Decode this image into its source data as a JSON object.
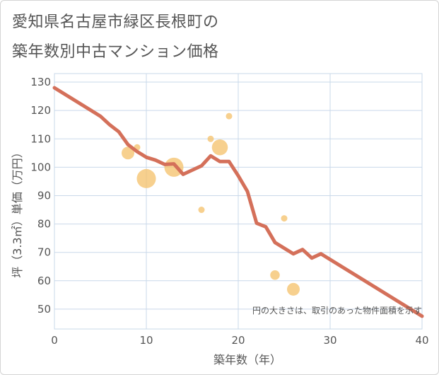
{
  "page": {
    "title_line1": "愛知県名古屋市緑区長根町の",
    "title_line2": "築年数別中古マンション価格"
  },
  "chart_data": {
    "type": "scatter",
    "title": "愛知県名古屋市緑区長根町の築年数別中古マンション価格",
    "xlabel": "築年数（年）",
    "ylabel": "坪（3.3㎡）単価（万円）",
    "xlim": [
      0,
      40
    ],
    "ylim": [
      43,
      133
    ],
    "xticks": [
      0,
      10,
      20,
      30,
      40
    ],
    "yticks": [
      50,
      60,
      70,
      80,
      90,
      100,
      110,
      120,
      130
    ],
    "grid": true,
    "note": "円の大きさは、取引のあった物件面積を示す",
    "colors": {
      "bubble": "#f5c36e",
      "line": "#d4705a",
      "grid": "#c9d8ea",
      "axis_text": "#555555"
    },
    "points": [
      {
        "x": 8,
        "y": 105,
        "size": 2
      },
      {
        "x": 9,
        "y": 107,
        "size": 1
      },
      {
        "x": 10,
        "y": 96,
        "size": 3
      },
      {
        "x": 13,
        "y": 100,
        "size": 3
      },
      {
        "x": 16,
        "y": 85,
        "size": 1
      },
      {
        "x": 17,
        "y": 110,
        "size": 1
      },
      {
        "x": 18,
        "y": 107,
        "size": 2.5
      },
      {
        "x": 19,
        "y": 118,
        "size": 1
      },
      {
        "x": 24,
        "y": 62,
        "size": 1.5
      },
      {
        "x": 25,
        "y": 82,
        "size": 1
      },
      {
        "x": 26,
        "y": 57,
        "size": 2
      }
    ],
    "trend": {
      "x": [
        0,
        5,
        6,
        7,
        8,
        9,
        10,
        11,
        12,
        13,
        14,
        15,
        16,
        17,
        18,
        19,
        20,
        21,
        22,
        23,
        24,
        25,
        26,
        27,
        28,
        29,
        30,
        40
      ],
      "y": [
        128,
        118,
        115,
        112.5,
        108,
        105.5,
        103.5,
        102.5,
        101,
        101.2,
        97.5,
        99,
        100.5,
        104,
        102,
        102,
        97,
        91.5,
        80.3,
        79,
        73.5,
        71.5,
        69.5,
        71,
        68,
        69.5,
        67.5,
        47.5
      ]
    }
  }
}
